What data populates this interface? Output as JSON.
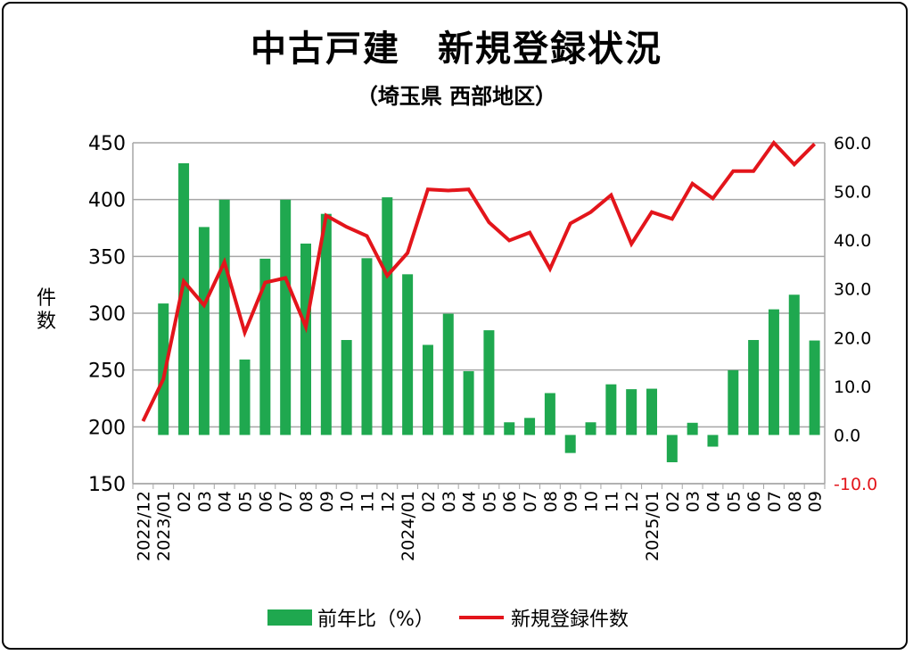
{
  "chart_data": {
    "type": "bar+line",
    "title": "中古戸建　新規登録状況",
    "subtitle": "（埼玉県 西部地区）",
    "ylabel": "件\n数",
    "categories": [
      "2022/12",
      "2023/01",
      "02",
      "03",
      "04",
      "05",
      "06",
      "07",
      "08",
      "09",
      "10",
      "11",
      "12",
      "2024/01",
      "02",
      "03",
      "04",
      "05",
      "06",
      "07",
      "08",
      "09",
      "10",
      "11",
      "12",
      "2025/01",
      "02",
      "03",
      "04",
      "05",
      "06",
      "07",
      "08",
      "09"
    ],
    "y_left": {
      "ticks": [
        "450",
        "400",
        "350",
        "300",
        "250",
        "200",
        "150"
      ],
      "range": [
        150,
        450
      ]
    },
    "y_right": {
      "ticks": [
        "60.0",
        "50.0",
        "40.0",
        "30.0",
        "20.0",
        "10.0",
        "0.0",
        "-10.0"
      ],
      "range": [
        -10,
        60
      ]
    },
    "series": [
      {
        "name": "前年比(%)",
        "type": "bar",
        "axis": "right",
        "color": "#1fa84f",
        "values": [
          null,
          27.0,
          55.8,
          42.7,
          48.3,
          15.5,
          36.2,
          48.3,
          39.3,
          45.4,
          19.5,
          36.3,
          48.8,
          33.0,
          18.5,
          24.9,
          13.1,
          21.5,
          2.6,
          3.5,
          8.6,
          -3.7,
          2.6,
          10.4,
          9.4,
          9.5,
          -5.6,
          2.5,
          -2.4,
          13.3,
          19.5,
          25.8,
          28.8,
          19.4
        ]
      },
      {
        "name": "新規登録件数",
        "type": "line",
        "axis": "left",
        "color": "#e3151b",
        "values": [
          205,
          242,
          328,
          307,
          345,
          283,
          327,
          331,
          288,
          386,
          376,
          368,
          333,
          353,
          409,
          408,
          409,
          380,
          364,
          371,
          339,
          379,
          389,
          404,
          361,
          389,
          383,
          414,
          401,
          425,
          425,
          450,
          431,
          449
        ]
      }
    ],
    "legend": {
      "position": "bottom",
      "bar_label": "前年比（%）",
      "line_label": "新規登録件数"
    }
  }
}
